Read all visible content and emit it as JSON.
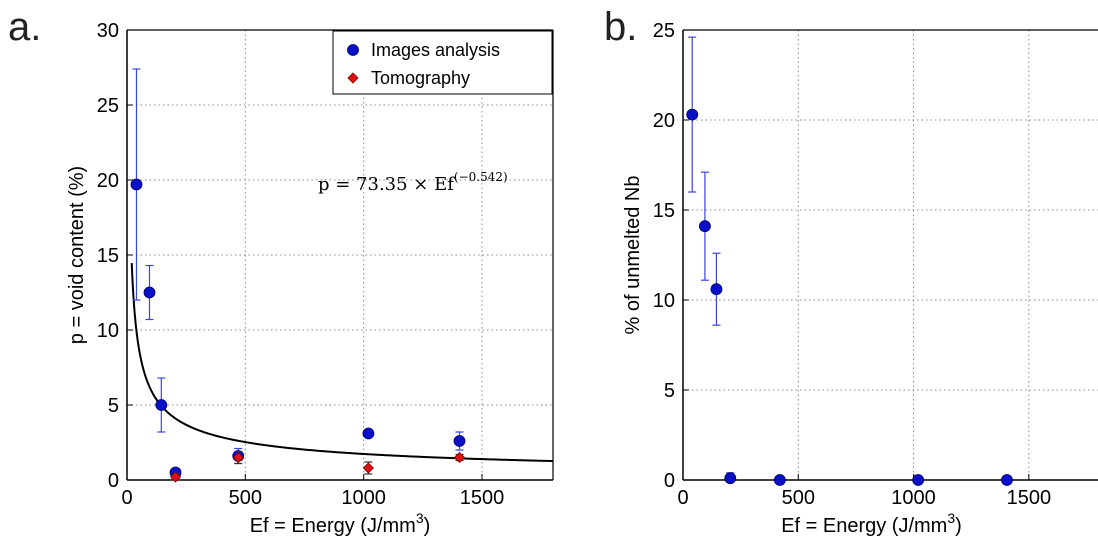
{
  "panels": {
    "a": {
      "letter": "a."
    },
    "b": {
      "letter": "b."
    }
  },
  "chart_data": [
    {
      "id": "a",
      "type": "scatter",
      "xlabel": "Ef = Energy (J/mm",
      "xlabel_sup": "3",
      "xlabel_end": ")",
      "ylabel": "p = void content (%)",
      "xlim": [
        0,
        1800
      ],
      "ylim": [
        0,
        30
      ],
      "xticks": [
        0,
        500,
        1000,
        1500
      ],
      "yticks": [
        0,
        5,
        10,
        15,
        20,
        25,
        30
      ],
      "grid": true,
      "legend_position": "top-right",
      "annotation": {
        "prefix": "p = 73.35 × Ef",
        "exponent": "(−0.542)"
      },
      "fit": {
        "coefficient": 73.35,
        "exponent": -0.542,
        "color": "#000000"
      },
      "series": [
        {
          "name": "Images analysis",
          "marker": "circle",
          "color": "#0a10c8",
          "points": [
            {
              "x": 40,
              "y": 19.7,
              "err": 7.7
            },
            {
              "x": 95,
              "y": 12.5,
              "err": 1.8
            },
            {
              "x": 145,
              "y": 5.0,
              "err": 1.8
            },
            {
              "x": 205,
              "y": 0.5,
              "err": 0.2
            },
            {
              "x": 470,
              "y": 1.6,
              "err": 0.5
            },
            {
              "x": 1020,
              "y": 3.1,
              "err": 0.2
            },
            {
              "x": 1405,
              "y": 2.6,
              "err": 0.6
            }
          ]
        },
        {
          "name": "Tomography",
          "marker": "diamond",
          "color": "#e01010",
          "points": [
            {
              "x": 205,
              "y": 0.2,
              "err": 0.2
            },
            {
              "x": 470,
              "y": 1.5,
              "err": 0.4
            },
            {
              "x": 1020,
              "y": 0.8,
              "err": 0.4
            },
            {
              "x": 1405,
              "y": 1.5,
              "err": 0.2
            }
          ]
        }
      ]
    },
    {
      "id": "b",
      "type": "scatter",
      "xlabel": "Ef = Energy (J/mm",
      "xlabel_sup": "3",
      "xlabel_end": ")",
      "ylabel": "% of unmelted Nb",
      "xlim": [
        0,
        1800
      ],
      "ylim": [
        0,
        25
      ],
      "xticks": [
        0,
        500,
        1000,
        1500
      ],
      "yticks": [
        0,
        5,
        10,
        15,
        20,
        25
      ],
      "grid": true,
      "series": [
        {
          "name": "",
          "marker": "circle",
          "color": "#0a10c8",
          "points": [
            {
              "x": 40,
              "y": 20.3,
              "err": 4.3
            },
            {
              "x": 95,
              "y": 14.1,
              "err": 3.0
            },
            {
              "x": 145,
              "y": 10.6,
              "err": 2.0
            },
            {
              "x": 205,
              "y": 0.1,
              "err": 0.3
            },
            {
              "x": 420,
              "y": 0.0,
              "err": 0.0
            },
            {
              "x": 1020,
              "y": 0.0,
              "err": 0.0
            },
            {
              "x": 1405,
              "y": 0.0,
              "err": 0.0
            }
          ]
        }
      ]
    }
  ]
}
